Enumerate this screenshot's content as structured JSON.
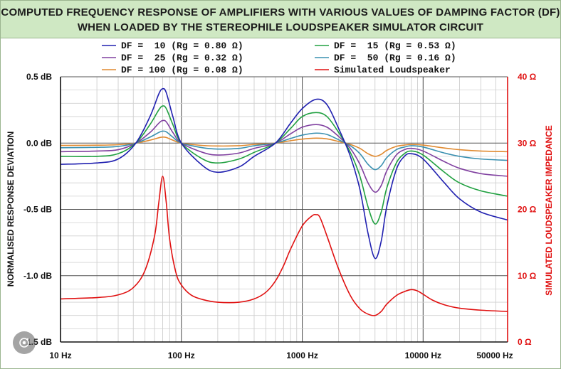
{
  "title": {
    "line1": "COMPUTED FREQUENCY RESPONSE OF AMPLIFIERS WITH VARIOUS VALUES OF DAMPING FACTOR (DF)",
    "line2": "WHEN LOADED BY THE STEREOPHILE LOUDSPEAKER SIMULATOR CIRCUIT"
  },
  "chart_data": {
    "type": "line",
    "title": "COMPUTED FREQUENCY RESPONSE OF AMPLIFIERS WITH VARIOUS VALUES OF DAMPING FACTOR (DF) WHEN LOADED BY THE STEREOPHILE LOUDSPEAKER SIMULATOR CIRCUIT",
    "xlabel": "",
    "ylabel": "NORMALISED RESPONSE DEVIATION",
    "ylabel_right": "SIMULATED LOUDSPEAKER IMPEDANCE",
    "x_scale": "log",
    "xlim": [
      10,
      50000
    ],
    "ylim": [
      -1.5,
      0.5
    ],
    "ylim_right": [
      0,
      40
    ],
    "x_ticks": [
      10,
      100,
      1000,
      10000,
      50000
    ],
    "x_tick_labels": [
      "10 Hz",
      "100 Hz",
      "1000 Hz",
      "10000 Hz",
      "50000 Hz"
    ],
    "y_ticks": [
      0.5,
      0.0,
      -0.5,
      -1.0,
      -1.5
    ],
    "y_tick_labels": [
      "0.5 dB",
      "0.0 dB",
      "-0.5 dB",
      "-1.0 dB",
      "-1.5 dB"
    ],
    "y_right_ticks": [
      40,
      30,
      20,
      10,
      0
    ],
    "y_right_tick_labels": [
      "40 Ω",
      "30 Ω",
      "20 Ω",
      "10 Ω",
      "0 Ω"
    ],
    "grid": true,
    "legend_position": "top",
    "legend": [
      {
        "key": "df10",
        "label": "DF =  10 (Rg = 0.80 Ω)",
        "color": "#2020b0"
      },
      {
        "key": "df15",
        "label": "DF =  15 (Rg = 0.53 Ω)",
        "color": "#20a040"
      },
      {
        "key": "df25",
        "label": "DF =  25 (Rg = 0.32 Ω)",
        "color": "#8040a0"
      },
      {
        "key": "df50",
        "label": "DF =  50 (Rg = 0.16 Ω)",
        "color": "#3a90b0"
      },
      {
        "key": "df100",
        "label": "DF = 100 (Rg = 0.08 Ω)",
        "color": "#e08a30"
      },
      {
        "key": "speaker",
        "label": "Simulated Loudspeaker",
        "color": "#e01010"
      }
    ],
    "series": [
      {
        "name": "DF = 10 (Rg = 0.80 Ω)",
        "key": "df10",
        "axis": "left",
        "color": "#2020b0",
        "x": [
          10,
          20,
          30,
          42,
          55,
          65,
          70,
          75,
          85,
          100,
          150,
          200,
          300,
          400,
          600,
          800,
          1000,
          1300,
          1600,
          2000,
          2500,
          3000,
          3500,
          4000,
          4500,
          5000,
          6000,
          7000,
          8000,
          10000,
          15000,
          20000,
          30000,
          50000
        ],
        "y": [
          -0.16,
          -0.15,
          -0.12,
          0.0,
          0.2,
          0.37,
          0.41,
          0.38,
          0.2,
          0.0,
          -0.17,
          -0.22,
          -0.18,
          -0.1,
          0.0,
          0.15,
          0.26,
          0.33,
          0.29,
          0.11,
          -0.1,
          -0.35,
          -0.68,
          -0.87,
          -0.74,
          -0.48,
          -0.2,
          -0.1,
          -0.08,
          -0.12,
          -0.3,
          -0.42,
          -0.52,
          -0.58
        ]
      },
      {
        "name": "DF = 15 (Rg = 0.53 Ω)",
        "key": "df15",
        "axis": "left",
        "color": "#20a040",
        "x": [
          10,
          20,
          30,
          42,
          55,
          65,
          70,
          75,
          85,
          100,
          150,
          200,
          300,
          400,
          600,
          800,
          1000,
          1300,
          1600,
          2000,
          2500,
          3000,
          3500,
          4000,
          4500,
          5000,
          6000,
          7000,
          8000,
          10000,
          15000,
          20000,
          30000,
          50000
        ],
        "y": [
          -0.1,
          -0.1,
          -0.08,
          0.0,
          0.14,
          0.25,
          0.28,
          0.26,
          0.14,
          0.0,
          -0.12,
          -0.15,
          -0.12,
          -0.07,
          0.0,
          0.11,
          0.2,
          0.23,
          0.2,
          0.08,
          -0.07,
          -0.25,
          -0.48,
          -0.61,
          -0.52,
          -0.34,
          -0.15,
          -0.08,
          -0.06,
          -0.09,
          -0.22,
          -0.3,
          -0.36,
          -0.4
        ]
      },
      {
        "name": "DF = 25 (Rg = 0.32 Ω)",
        "key": "df25",
        "axis": "left",
        "color": "#8040a0",
        "x": [
          10,
          20,
          30,
          42,
          55,
          65,
          70,
          75,
          85,
          100,
          150,
          200,
          300,
          400,
          600,
          800,
          1000,
          1300,
          1600,
          2000,
          2500,
          3000,
          3500,
          4000,
          4500,
          5000,
          6000,
          7000,
          8000,
          10000,
          15000,
          20000,
          30000,
          50000
        ],
        "y": [
          -0.065,
          -0.06,
          -0.05,
          0.0,
          0.08,
          0.15,
          0.17,
          0.16,
          0.08,
          0.0,
          -0.07,
          -0.09,
          -0.075,
          -0.04,
          0.0,
          0.07,
          0.12,
          0.14,
          0.12,
          0.05,
          -0.04,
          -0.16,
          -0.3,
          -0.37,
          -0.32,
          -0.21,
          -0.09,
          -0.05,
          -0.04,
          -0.06,
          -0.14,
          -0.19,
          -0.23,
          -0.25
        ]
      },
      {
        "name": "DF = 50 (Rg = 0.16 Ω)",
        "key": "df50",
        "axis": "left",
        "color": "#3a90b0",
        "x": [
          10,
          20,
          30,
          42,
          55,
          65,
          70,
          75,
          85,
          100,
          150,
          200,
          300,
          400,
          600,
          800,
          1000,
          1300,
          1600,
          2000,
          2500,
          3000,
          3500,
          4000,
          4500,
          5000,
          6000,
          7000,
          8000,
          10000,
          15000,
          20000,
          30000,
          50000
        ],
        "y": [
          -0.035,
          -0.032,
          -0.025,
          0.0,
          0.045,
          0.08,
          0.09,
          0.085,
          0.045,
          0.0,
          -0.035,
          -0.045,
          -0.04,
          -0.02,
          0.0,
          0.035,
          0.06,
          0.075,
          0.065,
          0.025,
          -0.02,
          -0.08,
          -0.16,
          -0.2,
          -0.17,
          -0.11,
          -0.05,
          -0.03,
          -0.02,
          -0.03,
          -0.075,
          -0.1,
          -0.12,
          -0.13
        ]
      },
      {
        "name": "DF = 100 (Rg = 0.08 Ω)",
        "key": "df100",
        "axis": "left",
        "color": "#e08a30",
        "x": [
          10,
          20,
          30,
          42,
          55,
          65,
          70,
          75,
          85,
          100,
          150,
          200,
          300,
          400,
          600,
          800,
          1000,
          1300,
          1600,
          2000,
          2500,
          3000,
          3500,
          4000,
          4500,
          5000,
          6000,
          7000,
          8000,
          10000,
          15000,
          20000,
          30000,
          50000
        ],
        "y": [
          -0.018,
          -0.016,
          -0.012,
          0.0,
          0.022,
          0.04,
          0.045,
          0.042,
          0.022,
          0.0,
          -0.018,
          -0.022,
          -0.02,
          -0.01,
          0.0,
          0.018,
          0.03,
          0.037,
          0.032,
          0.012,
          -0.01,
          -0.04,
          -0.08,
          -0.1,
          -0.085,
          -0.055,
          -0.025,
          -0.015,
          -0.01,
          -0.015,
          -0.037,
          -0.05,
          -0.06,
          -0.065
        ]
      },
      {
        "name": "Simulated Loudspeaker",
        "key": "speaker",
        "axis": "right",
        "color": "#e01010",
        "x": [
          10,
          20,
          30,
          40,
          50,
          60,
          65,
          70,
          75,
          80,
          90,
          100,
          120,
          150,
          200,
          300,
          400,
          500,
          600,
          700,
          800,
          1000,
          1200,
          1300,
          1400,
          1600,
          2000,
          2500,
          3000,
          3500,
          4000,
          4500,
          5000,
          6000,
          7000,
          8000,
          9000,
          10000,
          12000,
          15000,
          20000,
          30000,
          50000
        ],
        "y": [
          6.5,
          6.7,
          7.1,
          8.2,
          10.8,
          16.0,
          21.0,
          25.0,
          21.0,
          15.5,
          10.5,
          8.6,
          7.1,
          6.4,
          6.0,
          6.0,
          6.5,
          7.5,
          9.2,
          11.5,
          14.0,
          17.5,
          19.0,
          19.2,
          18.8,
          16.0,
          11.0,
          7.0,
          5.0,
          4.2,
          4.0,
          4.6,
          5.7,
          7.0,
          7.6,
          7.9,
          7.7,
          7.2,
          6.3,
          5.6,
          5.1,
          4.8,
          4.6
        ]
      }
    ]
  }
}
